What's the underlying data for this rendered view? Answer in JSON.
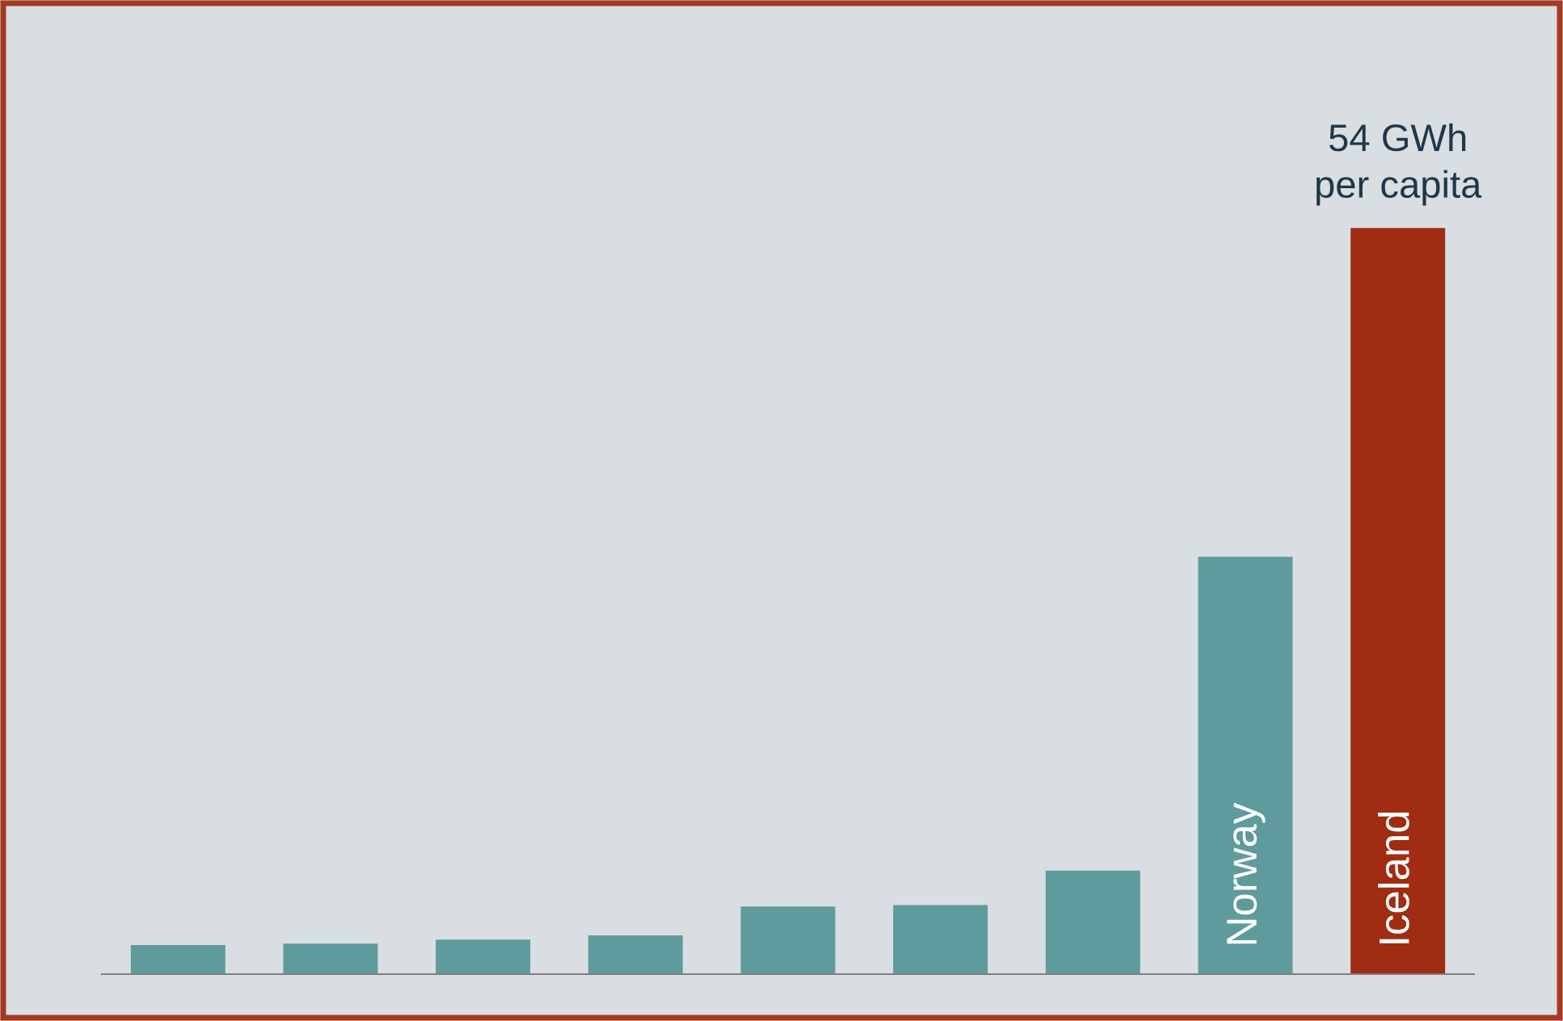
{
  "chart_data": {
    "type": "bar",
    "categories": [
      null,
      null,
      null,
      null,
      null,
      null,
      null,
      "Norway",
      "Iceland"
    ],
    "values": [
      2.1,
      2.2,
      2.5,
      2.8,
      4.9,
      5.0,
      7.5,
      30.2,
      54
    ],
    "colors": [
      "#5f9b9c",
      "#5f9b9c",
      "#5f9b9c",
      "#5f9b9c",
      "#5f9b9c",
      "#5f9b9c",
      "#5f9b9c",
      "#5f9b9c",
      "#a02c12"
    ],
    "value_labels": [
      null,
      null,
      null,
      null,
      null,
      null,
      null,
      null,
      "54 GWh\nper capita"
    ]
  }
}
